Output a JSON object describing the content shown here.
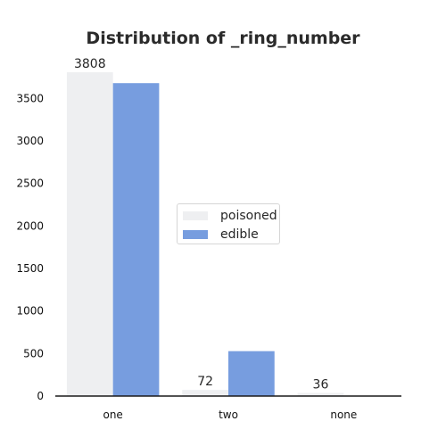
{
  "chart_data": {
    "type": "bar",
    "title": "Distribution of _ring_number",
    "xlabel": "",
    "ylabel": "",
    "categories": [
      "one",
      "two",
      "none"
    ],
    "series": [
      {
        "name": "poisoned",
        "values": [
          3808,
          72,
          36
        ],
        "color": "#eeeff1"
      },
      {
        "name": "edible",
        "values": [
          3680,
          528,
          0
        ],
        "color": "#779ddf"
      }
    ],
    "data_labels": [
      "3808",
      "72",
      "36"
    ],
    "ylim": [
      0,
      3850
    ],
    "yticks": [
      0,
      500,
      1000,
      1500,
      2000,
      2500,
      3000,
      3500
    ],
    "grid": false,
    "legend_position": "center"
  }
}
